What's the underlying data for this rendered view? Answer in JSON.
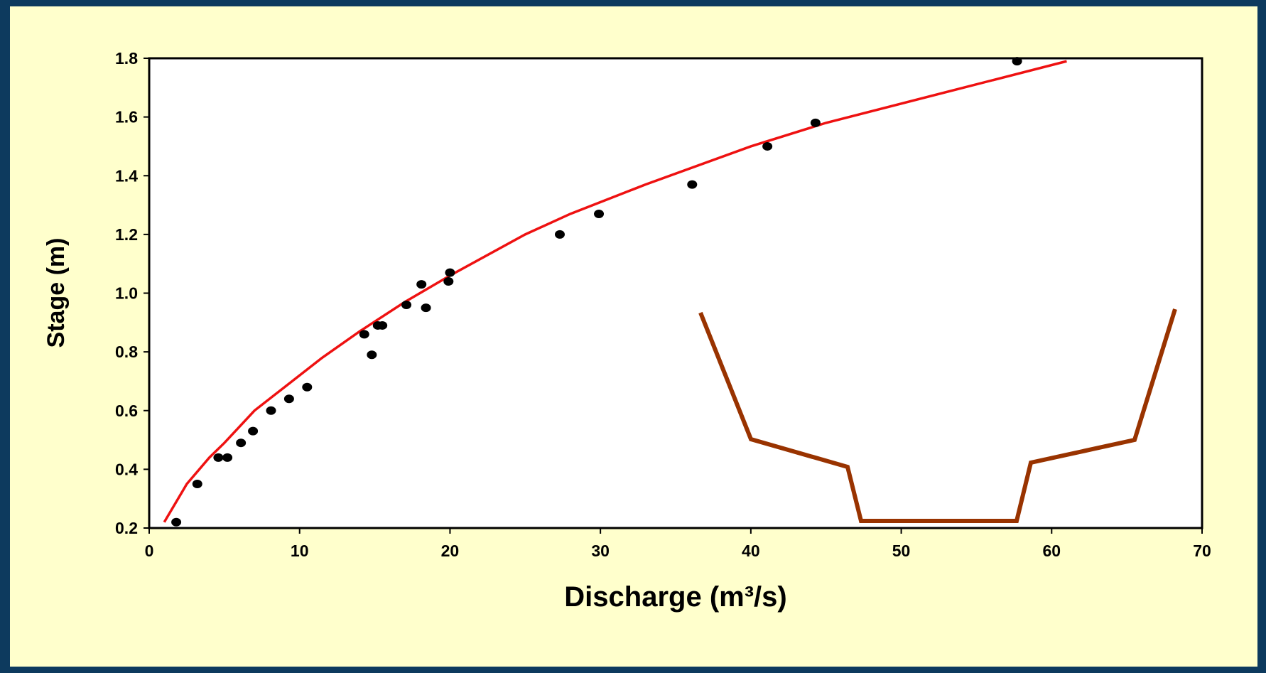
{
  "chart_data": {
    "type": "scatter",
    "xlabel": "Discharge (m³/s)",
    "ylabel": "Stage (m)",
    "xlim": [
      0,
      70
    ],
    "xticks": [
      0,
      10,
      20,
      30,
      40,
      50,
      60,
      70
    ],
    "ylim": [
      0.2,
      1.8
    ],
    "yticks": [
      0.2,
      0.4,
      0.6,
      0.8,
      {
        "value": 1,
        "label": "1.0"
      },
      1.2,
      1.4,
      1.6,
      1.8
    ],
    "series": [
      {
        "type": "scatter",
        "color": "#000000",
        "x": [
          1.8,
          3.2,
          4.6,
          5.2,
          6.1,
          6.9,
          8.1,
          9.3,
          10.5,
          14.3,
          14.8,
          15.2,
          15.5,
          17.1,
          18.1,
          18.4,
          19.9,
          20.0,
          27.3,
          29.9,
          36.1,
          41.1,
          44.3,
          57.7
        ],
        "values": [
          0.22,
          0.35,
          0.44,
          0.44,
          0.49,
          0.53,
          0.6,
          0.64,
          0.68,
          0.86,
          0.79,
          0.89,
          0.89,
          0.96,
          1.03,
          0.95,
          1.04,
          1.07,
          1.2,
          1.27,
          1.37,
          1.5,
          1.58,
          1.79
        ]
      },
      {
        "type": "line",
        "color": "#ee1111",
        "x": [
          1,
          2.5,
          4,
          5,
          7,
          9,
          11.5,
          14,
          17,
          20,
          25,
          28,
          33,
          40,
          45,
          61
        ],
        "values": [
          0.22,
          0.35,
          0.44,
          0.49,
          0.6,
          0.68,
          0.78,
          0.87,
          0.97,
          1.06,
          1.2,
          1.27,
          1.37,
          1.5,
          1.58,
          1.79
        ]
      }
    ]
  }
}
